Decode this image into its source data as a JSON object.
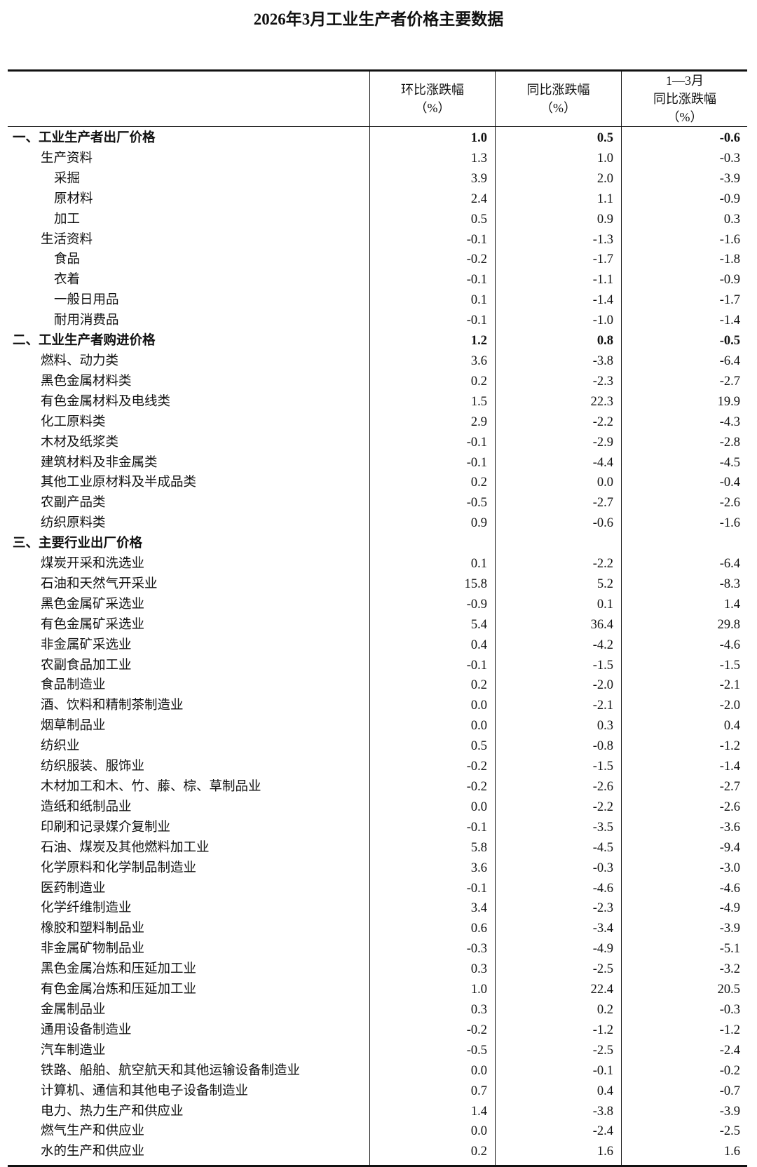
{
  "title": "2026年3月工业生产者价格主要数据",
  "headers": [
    {
      "lines": [
        "环比涨跌幅",
        "（%）"
      ]
    },
    {
      "lines": [
        "同比涨跌幅",
        "（%）"
      ]
    },
    {
      "lines": [
        "1—3月",
        "同比涨跌幅",
        "（%）"
      ]
    }
  ],
  "rows": [
    {
      "label": "一、工业生产者出厂价格",
      "level": 0,
      "mom": "1.0",
      "yoy": "0.5",
      "ytd": "-0.6"
    },
    {
      "label": "生产资料",
      "level": 1,
      "mom": "1.3",
      "yoy": "1.0",
      "ytd": "-0.3"
    },
    {
      "label": "采掘",
      "level": 2,
      "mom": "3.9",
      "yoy": "2.0",
      "ytd": "-3.9"
    },
    {
      "label": "原材料",
      "level": 2,
      "mom": "2.4",
      "yoy": "1.1",
      "ytd": "-0.9"
    },
    {
      "label": "加工",
      "level": 2,
      "mom": "0.5",
      "yoy": "0.9",
      "ytd": "0.3"
    },
    {
      "label": "生活资料",
      "level": 1,
      "mom": "-0.1",
      "yoy": "-1.3",
      "ytd": "-1.6"
    },
    {
      "label": "食品",
      "level": 2,
      "mom": "-0.2",
      "yoy": "-1.7",
      "ytd": "-1.8"
    },
    {
      "label": "衣着",
      "level": 2,
      "mom": "-0.1",
      "yoy": "-1.1",
      "ytd": "-0.9"
    },
    {
      "label": "一般日用品",
      "level": 2,
      "mom": "0.1",
      "yoy": "-1.4",
      "ytd": "-1.7"
    },
    {
      "label": "耐用消费品",
      "level": 2,
      "mom": "-0.1",
      "yoy": "-1.0",
      "ytd": "-1.4"
    },
    {
      "label": "二、工业生产者购进价格",
      "level": 0,
      "mom": "1.2",
      "yoy": "0.8",
      "ytd": "-0.5"
    },
    {
      "label": "燃料、动力类",
      "level": 1,
      "mom": "3.6",
      "yoy": "-3.8",
      "ytd": "-6.4"
    },
    {
      "label": "黑色金属材料类",
      "level": 1,
      "mom": "0.2",
      "yoy": "-2.3",
      "ytd": "-2.7"
    },
    {
      "label": "有色金属材料及电线类",
      "level": 1,
      "mom": "1.5",
      "yoy": "22.3",
      "ytd": "19.9"
    },
    {
      "label": "化工原料类",
      "level": 1,
      "mom": "2.9",
      "yoy": "-2.2",
      "ytd": "-4.3"
    },
    {
      "label": "木材及纸浆类",
      "level": 1,
      "mom": "-0.1",
      "yoy": "-2.9",
      "ytd": "-2.8"
    },
    {
      "label": "建筑材料及非金属类",
      "level": 1,
      "mom": "-0.1",
      "yoy": "-4.4",
      "ytd": "-4.5"
    },
    {
      "label": "其他工业原材料及半成品类",
      "level": 1,
      "mom": "0.2",
      "yoy": "0.0",
      "ytd": "-0.4"
    },
    {
      "label": "农副产品类",
      "level": 1,
      "mom": "-0.5",
      "yoy": "-2.7",
      "ytd": "-2.6"
    },
    {
      "label": "纺织原料类",
      "level": 1,
      "mom": "0.9",
      "yoy": "-0.6",
      "ytd": "-1.6"
    },
    {
      "label": "三、主要行业出厂价格",
      "level": 0,
      "mom": "",
      "yoy": "",
      "ytd": ""
    },
    {
      "label": "煤炭开采和洗选业",
      "level": 1,
      "mom": "0.1",
      "yoy": "-2.2",
      "ytd": "-6.4"
    },
    {
      "label": "石油和天然气开采业",
      "level": 1,
      "mom": "15.8",
      "yoy": "5.2",
      "ytd": "-8.3"
    },
    {
      "label": "黑色金属矿采选业",
      "level": 1,
      "mom": "-0.9",
      "yoy": "0.1",
      "ytd": "1.4"
    },
    {
      "label": "有色金属矿采选业",
      "level": 1,
      "mom": "5.4",
      "yoy": "36.4",
      "ytd": "29.8"
    },
    {
      "label": "非金属矿采选业",
      "level": 1,
      "mom": "0.4",
      "yoy": "-4.2",
      "ytd": "-4.6"
    },
    {
      "label": "农副食品加工业",
      "level": 1,
      "mom": "-0.1",
      "yoy": "-1.5",
      "ytd": "-1.5"
    },
    {
      "label": "食品制造业",
      "level": 1,
      "mom": "0.2",
      "yoy": "-2.0",
      "ytd": "-2.1"
    },
    {
      "label": "酒、饮料和精制茶制造业",
      "level": 1,
      "mom": "0.0",
      "yoy": "-2.1",
      "ytd": "-2.0"
    },
    {
      "label": "烟草制品业",
      "level": 1,
      "mom": "0.0",
      "yoy": "0.3",
      "ytd": "0.4"
    },
    {
      "label": "纺织业",
      "level": 1,
      "mom": "0.5",
      "yoy": "-0.8",
      "ytd": "-1.2"
    },
    {
      "label": "纺织服装、服饰业",
      "level": 1,
      "mom": "-0.2",
      "yoy": "-1.5",
      "ytd": "-1.4"
    },
    {
      "label": "木材加工和木、竹、藤、棕、草制品业",
      "level": 1,
      "mom": "-0.2",
      "yoy": "-2.6",
      "ytd": "-2.7"
    },
    {
      "label": "造纸和纸制品业",
      "level": 1,
      "mom": "0.0",
      "yoy": "-2.2",
      "ytd": "-2.6"
    },
    {
      "label": "印刷和记录媒介复制业",
      "level": 1,
      "mom": "-0.1",
      "yoy": "-3.5",
      "ytd": "-3.6"
    },
    {
      "label": "石油、煤炭及其他燃料加工业",
      "level": 1,
      "mom": "5.8",
      "yoy": "-4.5",
      "ytd": "-9.4"
    },
    {
      "label": "化学原料和化学制品制造业",
      "level": 1,
      "mom": "3.6",
      "yoy": "-0.3",
      "ytd": "-3.0"
    },
    {
      "label": "医药制造业",
      "level": 1,
      "mom": "-0.1",
      "yoy": "-4.6",
      "ytd": "-4.6"
    },
    {
      "label": "化学纤维制造业",
      "level": 1,
      "mom": "3.4",
      "yoy": "-2.3",
      "ytd": "-4.9"
    },
    {
      "label": "橡胶和塑料制品业",
      "level": 1,
      "mom": "0.6",
      "yoy": "-3.4",
      "ytd": "-3.9"
    },
    {
      "label": "非金属矿物制品业",
      "level": 1,
      "mom": "-0.3",
      "yoy": "-4.9",
      "ytd": "-5.1"
    },
    {
      "label": "黑色金属冶炼和压延加工业",
      "level": 1,
      "mom": "0.3",
      "yoy": "-2.5",
      "ytd": "-3.2"
    },
    {
      "label": "有色金属冶炼和压延加工业",
      "level": 1,
      "mom": "1.0",
      "yoy": "22.4",
      "ytd": "20.5"
    },
    {
      "label": "金属制品业",
      "level": 1,
      "mom": "0.3",
      "yoy": "0.2",
      "ytd": "-0.3"
    },
    {
      "label": "通用设备制造业",
      "level": 1,
      "mom": "-0.2",
      "yoy": "-1.2",
      "ytd": "-1.2"
    },
    {
      "label": "汽车制造业",
      "level": 1,
      "mom": "-0.5",
      "yoy": "-2.5",
      "ytd": "-2.4"
    },
    {
      "label": "铁路、船舶、航空航天和其他运输设备制造业",
      "level": 1,
      "mom": "0.0",
      "yoy": "-0.1",
      "ytd": "-0.2"
    },
    {
      "label": "计算机、通信和其他电子设备制造业",
      "level": 1,
      "mom": "0.7",
      "yoy": "0.4",
      "ytd": "-0.7"
    },
    {
      "label": "电力、热力生产和供应业",
      "level": 1,
      "mom": "1.4",
      "yoy": "-3.8",
      "ytd": "-3.9"
    },
    {
      "label": "燃气生产和供应业",
      "level": 1,
      "mom": "0.0",
      "yoy": "-2.4",
      "ytd": "-2.5"
    },
    {
      "label": "水的生产和供应业",
      "level": 1,
      "mom": "0.2",
      "yoy": "1.6",
      "ytd": "1.6"
    }
  ]
}
